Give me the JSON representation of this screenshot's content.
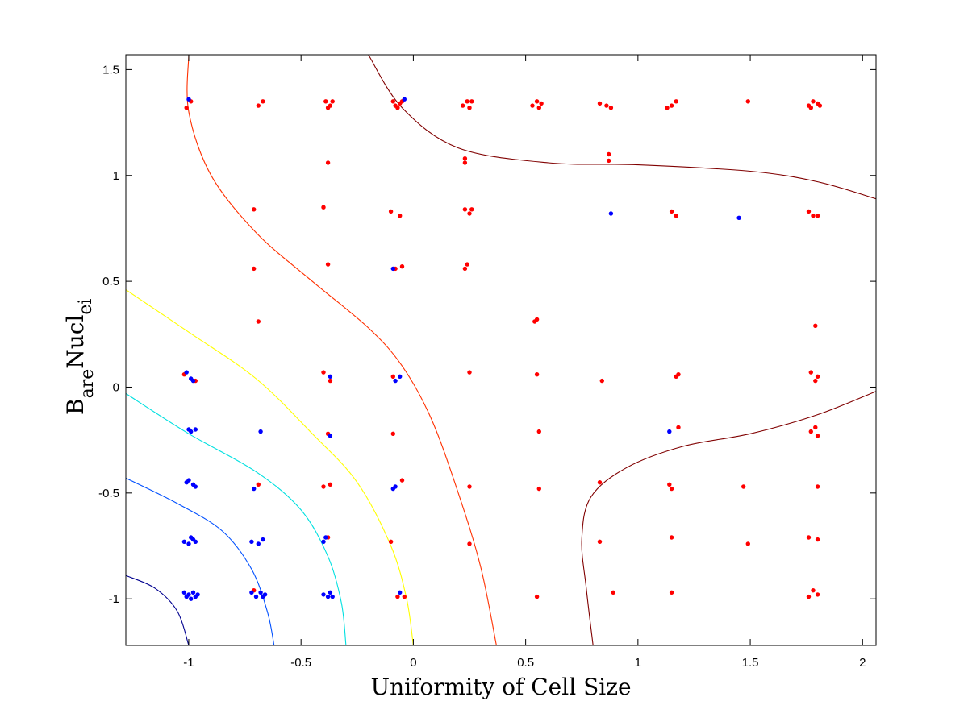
{
  "chart_data": {
    "type": "scatter",
    "xlabel": "Uniformity of Cell Size",
    "ylabel_parts": [
      "B",
      "are",
      "Nucl",
      "ei"
    ],
    "xlim": [
      -1.28,
      2.06
    ],
    "ylim": [
      -1.22,
      1.57
    ],
    "xticks": [
      {
        "v": -1,
        "label": "-1"
      },
      {
        "v": -0.5,
        "label": "-0.5"
      },
      {
        "v": 0,
        "label": "0"
      },
      {
        "v": 0.5,
        "label": "0.5"
      },
      {
        "v": 1,
        "label": "1"
      },
      {
        "v": 1.5,
        "label": "1.5"
      },
      {
        "v": 2,
        "label": "2"
      }
    ],
    "yticks": [
      {
        "v": -1,
        "label": "-1"
      },
      {
        "v": -0.5,
        "label": "-0.5"
      },
      {
        "v": 0,
        "label": "0"
      },
      {
        "v": 0.5,
        "label": "0.5"
      },
      {
        "v": 1,
        "label": "1"
      },
      {
        "v": 1.5,
        "label": "1.5"
      }
    ],
    "grid": false,
    "series": [
      {
        "color": "#ff0000",
        "points": [
          [
            -1.01,
            1.32
          ],
          [
            -0.99,
            1.35
          ],
          [
            -0.69,
            1.33
          ],
          [
            -0.67,
            1.35
          ],
          [
            -0.39,
            1.35
          ],
          [
            -0.37,
            1.33
          ],
          [
            -0.36,
            1.35
          ],
          [
            -0.38,
            1.32
          ],
          [
            -0.09,
            1.35
          ],
          [
            -0.08,
            1.33
          ],
          [
            -0.06,
            1.34
          ],
          [
            -0.07,
            1.32
          ],
          [
            -0.05,
            1.35
          ],
          [
            0.22,
            1.33
          ],
          [
            0.24,
            1.35
          ],
          [
            0.25,
            1.32
          ],
          [
            0.26,
            1.35
          ],
          [
            0.53,
            1.33
          ],
          [
            0.55,
            1.35
          ],
          [
            0.56,
            1.32
          ],
          [
            0.57,
            1.34
          ],
          [
            0.83,
            1.34
          ],
          [
            0.86,
            1.33
          ],
          [
            0.88,
            1.32
          ],
          [
            1.13,
            1.32
          ],
          [
            1.15,
            1.33
          ],
          [
            1.17,
            1.35
          ],
          [
            1.49,
            1.35
          ],
          [
            1.76,
            1.33
          ],
          [
            1.78,
            1.35
          ],
          [
            1.8,
            1.34
          ],
          [
            1.77,
            1.32
          ],
          [
            1.81,
            1.33
          ],
          [
            -0.38,
            1.06
          ],
          [
            0.23,
            1.08
          ],
          [
            0.23,
            1.06
          ],
          [
            0.87,
            1.1
          ],
          [
            0.87,
            1.07
          ],
          [
            -0.71,
            0.84
          ],
          [
            -0.4,
            0.85
          ],
          [
            -0.1,
            0.83
          ],
          [
            -0.06,
            0.81
          ],
          [
            0.23,
            0.84
          ],
          [
            0.25,
            0.82
          ],
          [
            0.26,
            0.84
          ],
          [
            1.15,
            0.83
          ],
          [
            1.17,
            0.81
          ],
          [
            1.76,
            0.83
          ],
          [
            1.78,
            0.81
          ],
          [
            1.8,
            0.81
          ],
          [
            -0.71,
            0.56
          ],
          [
            -0.38,
            0.58
          ],
          [
            -0.08,
            0.56
          ],
          [
            -0.05,
            0.57
          ],
          [
            0.23,
            0.56
          ],
          [
            0.24,
            0.58
          ],
          [
            -0.69,
            0.31
          ],
          [
            0.54,
            0.31
          ],
          [
            0.55,
            0.32
          ],
          [
            1.79,
            0.29
          ],
          [
            -1.02,
            0.06
          ],
          [
            -0.97,
            0.03
          ],
          [
            -0.4,
            0.07
          ],
          [
            -0.37,
            0.03
          ],
          [
            -0.09,
            0.05
          ],
          [
            0.25,
            0.07
          ],
          [
            0.55,
            0.06
          ],
          [
            0.84,
            0.03
          ],
          [
            1.17,
            0.05
          ],
          [
            1.18,
            0.06
          ],
          [
            1.77,
            0.07
          ],
          [
            1.79,
            0.03
          ],
          [
            1.8,
            0.05
          ],
          [
            -0.38,
            -0.22
          ],
          [
            -0.09,
            -0.22
          ],
          [
            0.56,
            -0.21
          ],
          [
            1.18,
            -0.19
          ],
          [
            1.77,
            -0.21
          ],
          [
            1.79,
            -0.19
          ],
          [
            1.8,
            -0.23
          ],
          [
            -0.69,
            -0.46
          ],
          [
            -0.4,
            -0.47
          ],
          [
            -0.37,
            -0.46
          ],
          [
            -0.05,
            -0.44
          ],
          [
            0.25,
            -0.47
          ],
          [
            0.56,
            -0.48
          ],
          [
            0.83,
            -0.45
          ],
          [
            1.14,
            -0.46
          ],
          [
            1.15,
            -0.48
          ],
          [
            1.47,
            -0.47
          ],
          [
            1.8,
            -0.47
          ],
          [
            -0.38,
            -0.71
          ],
          [
            -0.1,
            -0.73
          ],
          [
            0.25,
            -0.74
          ],
          [
            0.83,
            -0.73
          ],
          [
            1.15,
            -0.71
          ],
          [
            1.49,
            -0.74
          ],
          [
            1.76,
            -0.71
          ],
          [
            1.8,
            -0.72
          ],
          [
            -0.71,
            -0.96
          ],
          [
            -0.07,
            -0.99
          ],
          [
            -0.04,
            -0.99
          ],
          [
            0.55,
            -0.99
          ],
          [
            0.89,
            -0.97
          ],
          [
            1.15,
            -0.97
          ],
          [
            1.76,
            -0.99
          ],
          [
            1.78,
            -0.96
          ],
          [
            1.8,
            -0.98
          ]
        ]
      },
      {
        "color": "#0000ff",
        "points": [
          [
            -1.0,
            1.36
          ],
          [
            -0.04,
            1.36
          ],
          [
            0.88,
            0.82
          ],
          [
            1.45,
            0.8
          ],
          [
            -0.09,
            0.56
          ],
          [
            -1.01,
            0.07
          ],
          [
            -0.99,
            0.04
          ],
          [
            -0.98,
            0.03
          ],
          [
            -0.37,
            0.05
          ],
          [
            -0.08,
            0.03
          ],
          [
            -0.06,
            0.05
          ],
          [
            -1.0,
            -0.2
          ],
          [
            -0.99,
            -0.21
          ],
          [
            -0.97,
            -0.2
          ],
          [
            -0.68,
            -0.21
          ],
          [
            -0.37,
            -0.23
          ],
          [
            1.14,
            -0.21
          ],
          [
            -1.01,
            -0.45
          ],
          [
            -1.0,
            -0.44
          ],
          [
            -0.98,
            -0.46
          ],
          [
            -0.97,
            -0.47
          ],
          [
            -0.71,
            -0.48
          ],
          [
            -0.09,
            -0.48
          ],
          [
            -0.08,
            -0.47
          ],
          [
            -1.02,
            -0.73
          ],
          [
            -1.0,
            -0.74
          ],
          [
            -0.98,
            -0.72
          ],
          [
            -0.97,
            -0.73
          ],
          [
            -0.99,
            -0.71
          ],
          [
            -0.72,
            -0.73
          ],
          [
            -0.69,
            -0.74
          ],
          [
            -0.67,
            -0.72
          ],
          [
            -0.4,
            -0.73
          ],
          [
            -0.39,
            -0.71
          ],
          [
            -1.02,
            -0.97
          ],
          [
            -1.01,
            -0.99
          ],
          [
            -1.0,
            -0.98
          ],
          [
            -0.99,
            -1.0
          ],
          [
            -0.98,
            -0.97
          ],
          [
            -0.97,
            -0.99
          ],
          [
            -0.96,
            -0.98
          ],
          [
            -0.72,
            -0.97
          ],
          [
            -0.7,
            -0.99
          ],
          [
            -0.68,
            -0.97
          ],
          [
            -0.67,
            -0.99
          ],
          [
            -0.66,
            -0.98
          ],
          [
            -0.4,
            -0.98
          ],
          [
            -0.38,
            -0.99
          ],
          [
            -0.37,
            -0.97
          ],
          [
            -0.36,
            -0.99
          ],
          [
            -0.06,
            -0.97
          ]
        ]
      }
    ],
    "contours": [
      {
        "color": "#00008f",
        "points": [
          [
            -1.28,
            -0.89
          ],
          [
            -1.15,
            -0.95
          ],
          [
            -1.05,
            -1.06
          ],
          [
            -1.0,
            -1.22
          ]
        ]
      },
      {
        "color": "#0050ff",
        "points": [
          [
            -1.28,
            -0.43
          ],
          [
            -1.05,
            -0.55
          ],
          [
            -0.85,
            -0.68
          ],
          [
            -0.72,
            -0.86
          ],
          [
            -0.65,
            -1.06
          ],
          [
            -0.62,
            -1.22
          ]
        ]
      },
      {
        "color": "#00e0e0",
        "points": [
          [
            -1.28,
            -0.03
          ],
          [
            -1.0,
            -0.22
          ],
          [
            -0.7,
            -0.4
          ],
          [
            -0.5,
            -0.58
          ],
          [
            -0.38,
            -0.8
          ],
          [
            -0.32,
            -1.02
          ],
          [
            -0.3,
            -1.22
          ]
        ]
      },
      {
        "color": "#ffff00",
        "points": [
          [
            -1.28,
            0.46
          ],
          [
            -1.0,
            0.26
          ],
          [
            -0.7,
            0.04
          ],
          [
            -0.45,
            -0.22
          ],
          [
            -0.25,
            -0.45
          ],
          [
            -0.1,
            -0.75
          ],
          [
            -0.03,
            -1.0
          ],
          [
            0.0,
            -1.22
          ]
        ]
      },
      {
        "color": "#ff3000",
        "points": [
          [
            -1.0,
            1.57
          ],
          [
            -1.0,
            1.3
          ],
          [
            -0.9,
            1.0
          ],
          [
            -0.7,
            0.73
          ],
          [
            -0.45,
            0.5
          ],
          [
            -0.2,
            0.28
          ],
          [
            -0.05,
            0.1
          ],
          [
            0.08,
            -0.15
          ],
          [
            0.2,
            -0.5
          ],
          [
            0.3,
            -0.85
          ],
          [
            0.37,
            -1.22
          ]
        ]
      },
      {
        "color": "#800000",
        "points": [
          [
            -0.2,
            1.57
          ],
          [
            -0.05,
            1.32
          ],
          [
            0.2,
            1.13
          ],
          [
            0.6,
            1.06
          ],
          [
            1.0,
            1.05
          ],
          [
            1.5,
            1.02
          ],
          [
            1.8,
            0.97
          ],
          [
            2.06,
            0.89
          ]
        ]
      },
      {
        "color": "#800000",
        "points": [
          [
            0.8,
            -1.22
          ],
          [
            0.77,
            -0.95
          ],
          [
            0.75,
            -0.72
          ],
          [
            0.79,
            -0.52
          ],
          [
            0.95,
            -0.38
          ],
          [
            1.2,
            -0.28
          ],
          [
            1.5,
            -0.22
          ],
          [
            1.8,
            -0.13
          ],
          [
            2.06,
            -0.02
          ]
        ]
      }
    ]
  }
}
